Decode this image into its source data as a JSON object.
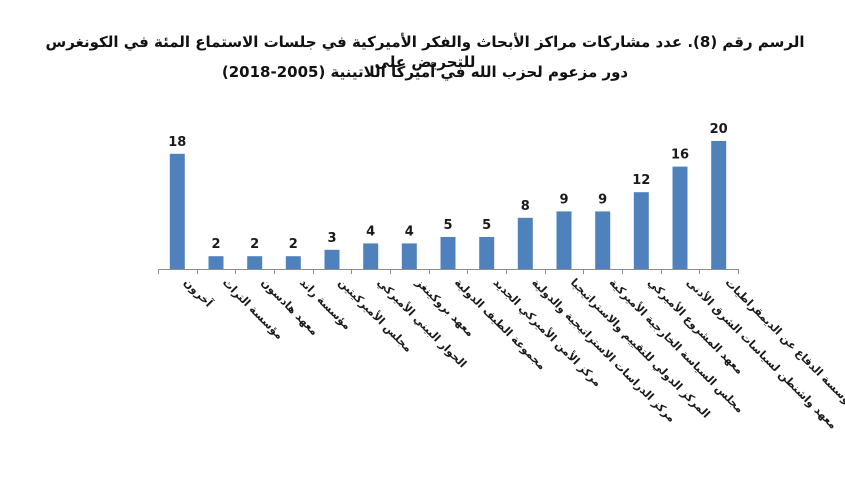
{
  "chart_data": {
    "type": "bar",
    "title": "الرسم رقم (8). عدد مشاركات مراكز الأبحاث والفكر الأميركية في جلسات الاستماع المئة في الكونغرس للتحريض على دور مزعوم لحزب الله في أميركا اللاتينية (2005-2018)",
    "title_lines": [
      "الرسم رقم (8). عدد مشاركات مراكز الأبحاث والفكر الأميركية في جلسات الاستماع المئة في الكونغرس للتحريض على",
      "دور مزعوم لحزب الله في أميركا اللاتينية (2005-2018)"
    ],
    "categories": [
      "آخرون",
      "مؤسسة التراث",
      "معهد هادسون",
      "مؤسسة راند",
      "مجلس الأميركيتين",
      "الحوار البيني الأميركي",
      "معهد بروكينغز",
      "مجموعة الطيف الدولية",
      "مركز الأمن الأميركي الجديد",
      "مركز الدراسات الاستراتيجية والدولية",
      "المركز الدولي للتقييم والاستراتيجيا",
      "مجلس السياسة الخارجية الأميركية",
      "معهد المشروع الأميركي",
      "معهد واشنطن لسياسات الشرق الأدنى",
      "مؤسسة الدفاع عن الديمقراطيات"
    ],
    "values": [
      18,
      2,
      2,
      2,
      3,
      4,
      4,
      5,
      5,
      8,
      9,
      9,
      12,
      16,
      20
    ],
    "xlabel": "",
    "ylabel": "",
    "ylim": [
      0,
      20
    ],
    "grid": false,
    "legend": "none",
    "bar_color": "#4F81BD",
    "axis_color": "#8C8C8C"
  }
}
